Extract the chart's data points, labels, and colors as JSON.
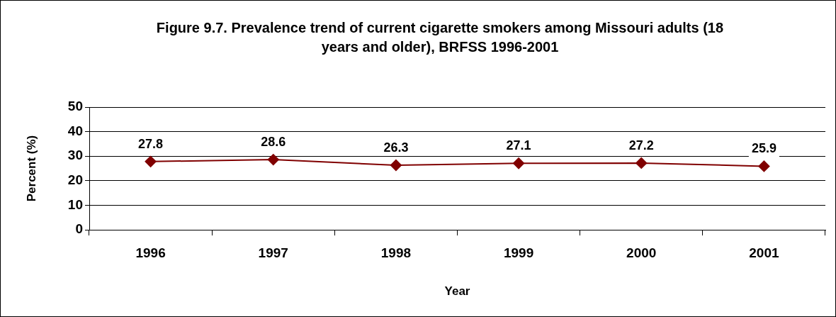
{
  "chart_data": {
    "type": "line",
    "title": "Figure 9.7. Prevalence trend of current cigarette smokers among Missouri adults (18 years and older), BRFSS 1996-2001",
    "xlabel": "Year",
    "ylabel": "Percent (%)",
    "categories": [
      "1996",
      "1997",
      "1998",
      "1999",
      "2000",
      "2001"
    ],
    "series": [
      {
        "color": "#800000",
        "values": [
          27.8,
          28.6,
          26.3,
          27.1,
          27.2,
          25.9
        ]
      }
    ],
    "ylim": [
      0,
      50
    ],
    "yticks": [
      0,
      10,
      20,
      30,
      40,
      50
    ],
    "grid": "y",
    "legend": false,
    "marker": "diamond",
    "line_style": "solid",
    "data_labels": true
  }
}
